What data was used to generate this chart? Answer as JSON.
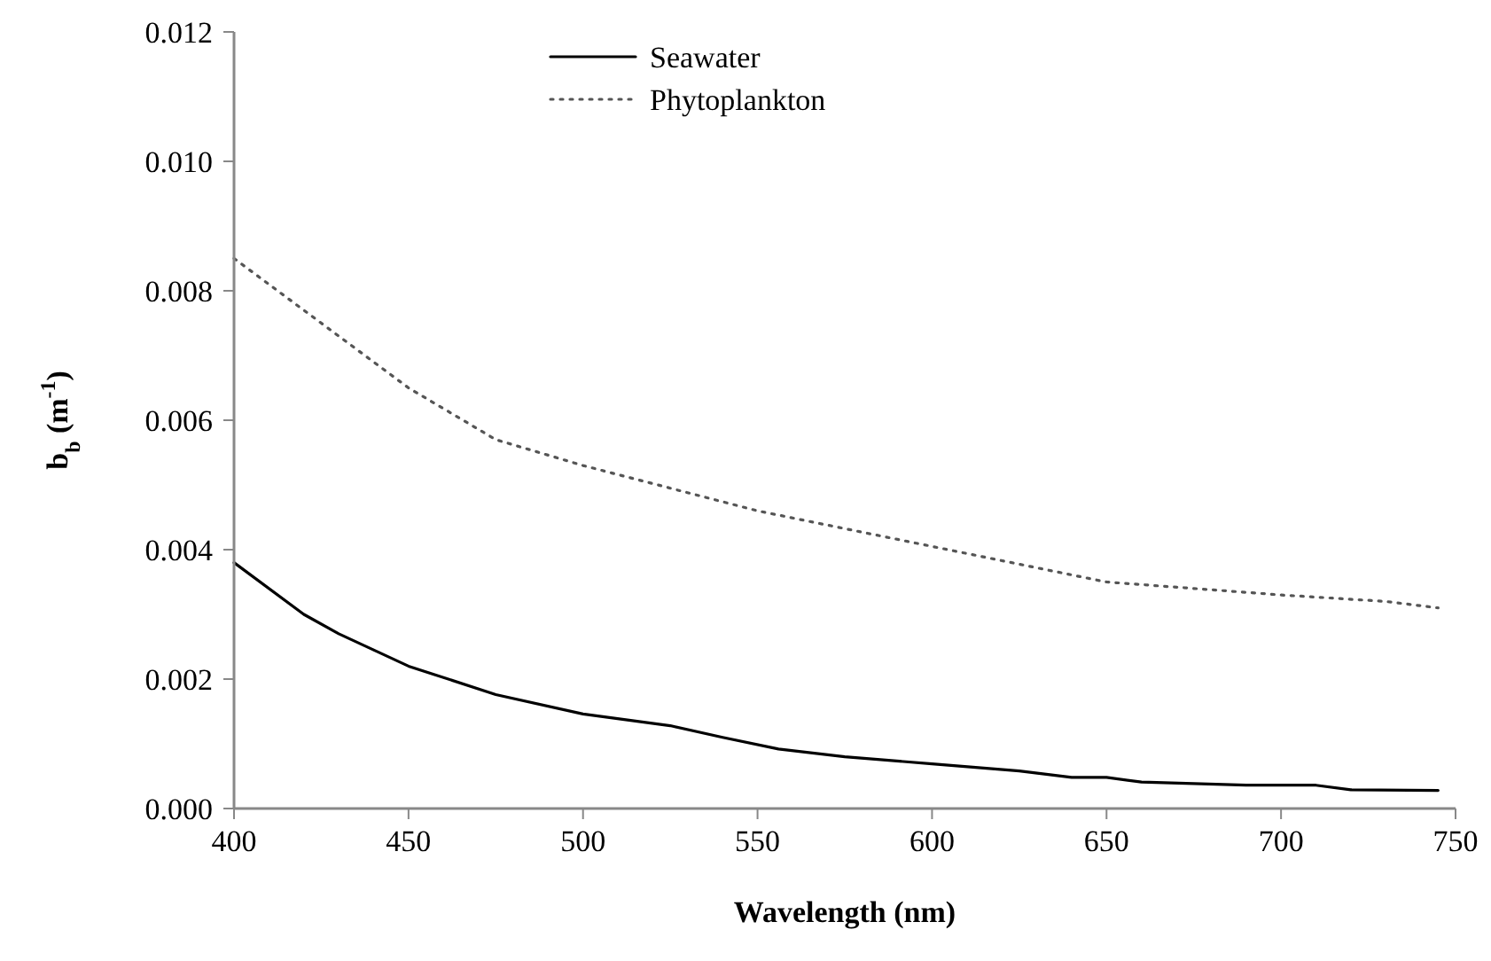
{
  "chart_data": {
    "type": "line",
    "xlabel": "Wavelength (nm)",
    "ylabel": "b$_{b}$ (m$^{-1}$)",
    "xlim": [
      400,
      750
    ],
    "xticks": [
      400,
      450,
      500,
      550,
      600,
      650,
      700,
      750
    ],
    "ylim": [
      0,
      0.012
    ],
    "yticks": [
      {
        "value": 0,
        "label": "0.000"
      },
      {
        "value": 0.002,
        "label": "0.002"
      },
      {
        "value": 0.004,
        "label": "0.004"
      },
      {
        "value": 0.006,
        "label": "0.006"
      },
      {
        "value": 0.008,
        "label": "0.008"
      },
      {
        "value": 0.01,
        "label": "0.010"
      },
      {
        "value": 0.012,
        "label": "0.012"
      }
    ],
    "legend": "top",
    "grid": false,
    "marker": "none",
    "series": [
      {
        "name": "Seawater",
        "color": "#000000",
        "line_style": "solid",
        "x": [
          400,
          420,
          430,
          440,
          450,
          475,
          500,
          525,
          540,
          556,
          575,
          600,
          625,
          640,
          650,
          660,
          690,
          710,
          720,
          745
        ],
        "values": [
          0.0038,
          0.003,
          0.0027,
          0.00245,
          0.0022,
          0.00176,
          0.00146,
          0.00128,
          0.0011,
          0.00092,
          0.0008,
          0.00069,
          0.00058,
          0.00048,
          0.00048,
          0.00041,
          0.00036,
          0.00036,
          0.00029,
          0.00028
        ]
      },
      {
        "name": "Phytoplankton",
        "color": "#555555",
        "line_style": "dotted",
        "x": [
          400,
          420,
          450,
          475,
          500,
          550,
          600,
          650,
          700,
          730,
          745
        ],
        "values": [
          0.0085,
          0.0077,
          0.0065,
          0.0057,
          0.0053,
          0.0046,
          0.00405,
          0.0035,
          0.0033,
          0.0032,
          0.0031
        ]
      }
    ]
  }
}
